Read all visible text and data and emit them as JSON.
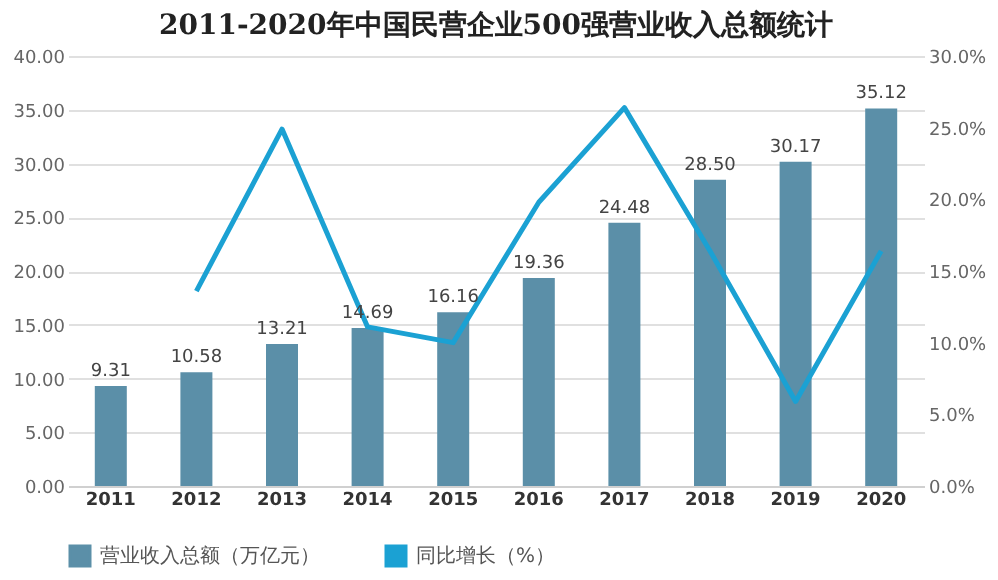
{
  "chart_data": {
    "type": "bar",
    "title": "2011-2020年中国民营企业500强营业收入总额统计",
    "categories": [
      "2011",
      "2012",
      "2013",
      "2014",
      "2015",
      "2016",
      "2017",
      "2018",
      "2019",
      "2020"
    ],
    "series": [
      {
        "name": "营业收入总额（万亿元）",
        "color": "#5b8fa8",
        "values": [
          9.31,
          10.58,
          13.21,
          14.69,
          16.16,
          19.36,
          24.48,
          28.5,
          30.17,
          35.12
        ],
        "value_labels": [
          "9.31",
          "10.58",
          "13.21",
          "14.69",
          "16.16",
          "19.36",
          "24.48",
          "28.50",
          "30.17",
          "35.12"
        ]
      },
      {
        "name": "同比增长（%）",
        "type": "line",
        "axis": "y2",
        "color": "#1ba1d3",
        "values": [
          null,
          13.6,
          24.9,
          11.1,
          10.0,
          19.8,
          26.4,
          16.4,
          5.9,
          16.4
        ]
      }
    ],
    "ylim": [
      0,
      40
    ],
    "yticks": [
      {
        "value": 0,
        "label": "0.00"
      },
      {
        "value": 5,
        "label": "5.00"
      },
      {
        "value": 10,
        "label": "10.00"
      },
      {
        "value": 15,
        "label": "15.00"
      },
      {
        "value": 20,
        "label": "20.00"
      },
      {
        "value": 25,
        "label": "25.00"
      },
      {
        "value": 30,
        "label": "30.00"
      },
      {
        "value": 35,
        "label": "35.00"
      },
      {
        "value": 40,
        "label": "40.00"
      }
    ],
    "y2lim": [
      0,
      30
    ],
    "y2ticks": [
      {
        "value": 0,
        "label": "0.0%"
      },
      {
        "value": 5,
        "label": "5.0%"
      },
      {
        "value": 10,
        "label": "10.0%"
      },
      {
        "value": 15,
        "label": "15.0%"
      },
      {
        "value": 20,
        "label": "20.0%"
      },
      {
        "value": 25,
        "label": "25.0%"
      },
      {
        "value": 30,
        "label": "30.0%"
      }
    ],
    "grid": "y",
    "legend": "bottom"
  }
}
